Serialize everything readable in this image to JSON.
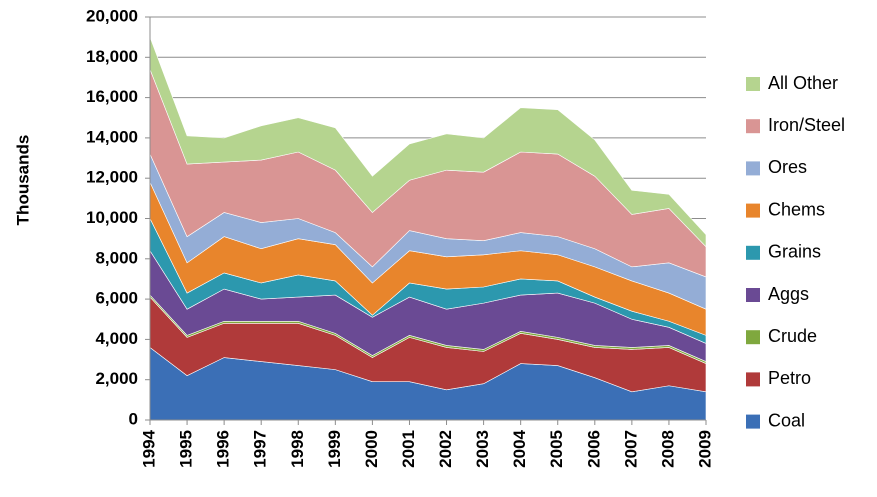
{
  "chart_data": {
    "type": "stacked-area",
    "y_label": "Thousands",
    "categories": [
      "1994",
      "1995",
      "1996",
      "1997",
      "1998",
      "1999",
      "2000",
      "2001",
      "2002",
      "2003",
      "2004",
      "2005",
      "2006",
      "2007",
      "2008",
      "2009"
    ],
    "series": [
      {
        "name": "Coal",
        "color": "#3b6fb6",
        "values": [
          3600,
          2200,
          3100,
          2900,
          2700,
          2500,
          1900,
          1900,
          1500,
          1800,
          2800,
          2700,
          2100,
          1400,
          1700,
          1400
        ]
      },
      {
        "name": "Petro",
        "color": "#b03a3a",
        "values": [
          2500,
          1900,
          1700,
          1900,
          2100,
          1700,
          1200,
          2200,
          2100,
          1600,
          1500,
          1300,
          1500,
          2100,
          1900,
          1400
        ]
      },
      {
        "name": "Crude",
        "color": "#7fa83e",
        "values": [
          100,
          100,
          100,
          100,
          100,
          100,
          100,
          100,
          100,
          100,
          100,
          100,
          100,
          100,
          100,
          100
        ]
      },
      {
        "name": "Aggs",
        "color": "#6a4a94",
        "values": [
          2200,
          1300,
          1600,
          1100,
          1200,
          1900,
          1900,
          1900,
          1800,
          2300,
          1800,
          2200,
          2100,
          1400,
          900,
          900
        ]
      },
      {
        "name": "Grains",
        "color": "#2c98ae",
        "values": [
          1600,
          800,
          800,
          800,
          1100,
          700,
          100,
          700,
          1000,
          800,
          800,
          600,
          300,
          400,
          300,
          400
        ]
      },
      {
        "name": "Chems",
        "color": "#e8852c",
        "values": [
          1800,
          1500,
          1800,
          1700,
          1800,
          1800,
          1600,
          1600,
          1600,
          1600,
          1400,
          1300,
          1500,
          1500,
          1400,
          1300
        ]
      },
      {
        "name": "Ores",
        "color": "#94add6",
        "values": [
          1400,
          1300,
          1200,
          1300,
          1000,
          600,
          800,
          1000,
          900,
          700,
          900,
          900,
          900,
          700,
          1500,
          1600
        ]
      },
      {
        "name": "Iron/Steel",
        "color": "#d99594",
        "values": [
          4200,
          3600,
          2500,
          3100,
          3300,
          3100,
          2700,
          2500,
          3400,
          3400,
          4000,
          4100,
          3600,
          2600,
          2700,
          1500
        ]
      },
      {
        "name": "All Other",
        "color": "#b5d48f",
        "values": [
          1600,
          1400,
          1200,
          1700,
          1700,
          2100,
          1800,
          1800,
          1800,
          1700,
          2200,
          2200,
          1800,
          1200,
          700,
          600
        ]
      }
    ],
    "ylim": [
      0,
      20000
    ],
    "yticks": [
      0,
      {
        "value": 2000,
        "label": "2,000"
      },
      {
        "value": 4000,
        "label": "4,000"
      },
      {
        "value": 6000,
        "label": "6,000"
      },
      {
        "value": 8000,
        "label": "8,000"
      },
      {
        "value": 10000,
        "label": "10,000"
      },
      {
        "value": 12000,
        "label": "12,000"
      },
      {
        "value": 14000,
        "label": "14,000"
      },
      {
        "value": 16000,
        "label": "16,000"
      },
      {
        "value": 18000,
        "label": "18,000"
      },
      {
        "value": 20000,
        "label": "20,000"
      }
    ],
    "grid": true,
    "legend": "right"
  }
}
